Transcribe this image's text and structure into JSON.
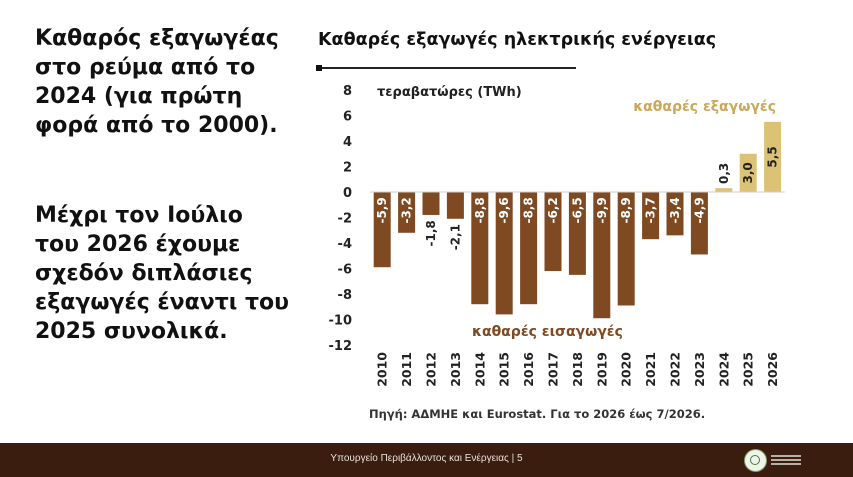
{
  "left": {
    "para1_lines": [
      "Καθαρός εξαγωγέας",
      "στο ρεύμα από το",
      "2024 (για πρώτη",
      "φορά από το 2000)."
    ],
    "para2_lines": [
      "Μέχρι τον Ιούλιο",
      "του 2026 έχουμε",
      "σχεδόν διπλάσιες",
      "εξαγωγές έναντι του",
      "2025 συνολικά."
    ]
  },
  "footer": {
    "text": "Υπουργείο Περιβάλλοντος και Ενέργειας | 5",
    "logo_icon": "ministry-emblem-icon"
  },
  "colors": {
    "imports_bar": "#7f4a22",
    "exports_bar": "#dcc274",
    "exports_label": "#c8a85a",
    "imports_label": "#7f4a22",
    "footer_bg": "#3b1d0f"
  },
  "chart_data": {
    "type": "bar",
    "title": "Καθαρές εξαγωγές ηλεκτρικής ενέργειας",
    "ylabel": "τεραβατώρες (TWh)",
    "ylim": [
      -12,
      8
    ],
    "yticks": [
      8,
      6,
      4,
      2,
      0,
      -2,
      -4,
      -6,
      -8,
      -10,
      -12
    ],
    "categories": [
      "2010",
      "2011",
      "2012",
      "2013",
      "2014",
      "2015",
      "2016",
      "2017",
      "2018",
      "2019",
      "2020",
      "2021",
      "2022",
      "2023",
      "2024",
      "2025",
      "2026"
    ],
    "values": [
      -5.9,
      -3.2,
      -1.8,
      -2.1,
      -8.8,
      -9.6,
      -8.8,
      -6.2,
      -6.5,
      -9.9,
      -8.9,
      -3.7,
      -3.4,
      -4.9,
      0.3,
      3.0,
      5.5
    ],
    "data_labels": [
      "-5,9",
      "-3,2",
      "-1,8",
      "-2,1",
      "-8,8",
      "-9,6",
      "-8,8",
      "-6,2",
      "-6,5",
      "-9,9",
      "-8,9",
      "-3,7",
      "-3,4",
      "-4,9",
      "0,3",
      "3,0",
      "5,5"
    ],
    "annotations": {
      "exports": "καθαρές εξαγωγές",
      "imports": "καθαρές εισαγωγές"
    },
    "source": "Πηγή: ΑΔΜΗΕ και Eurostat. Για το 2026 έως 7/2026.",
    "grid": false,
    "legend": "none"
  }
}
